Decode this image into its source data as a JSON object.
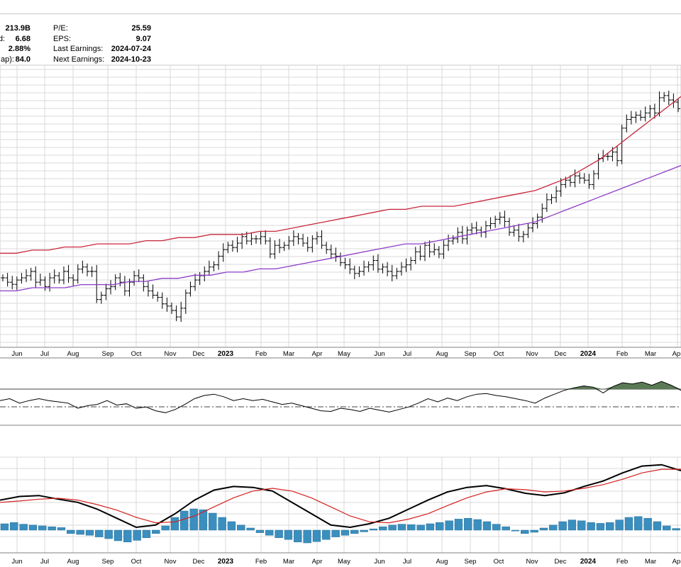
{
  "info_left": [
    {
      "label": "",
      "value": "213.9B"
    },
    {
      "label": "d:",
      "value": "6.68"
    },
    {
      "label": "",
      "value": "2.88%"
    },
    {
      "label": "ap):",
      "value": "84.0"
    }
  ],
  "info_right": [
    {
      "label": "P/E:",
      "value": "25.59"
    },
    {
      "label": "EPS:",
      "value": "9.07"
    },
    {
      "label": "Last Earnings:",
      "value": "2024-07-24"
    },
    {
      "label": "Next Earnings:",
      "value": "2024-10-23"
    }
  ],
  "colors": {
    "price_bar": "#000000",
    "ma_short": "#c8283c",
    "ma_long": "#8c3cc8",
    "oscillator": "#000000",
    "oscillator_fill": "#5a7a55",
    "macd": "#000000",
    "signal": "#d42020",
    "histogram": "#3a8fbf",
    "grid": "#d8d8d8"
  },
  "chart_data": [
    {
      "type": "line",
      "panel": "price",
      "x_axis_labels": [
        "Jun",
        "Jul",
        "Aug",
        "Sep",
        "Oct",
        "Nov",
        "Dec",
        "2023",
        "Feb",
        "Mar",
        "Apr",
        "May",
        "Jun",
        "Jul",
        "Aug",
        "Sep",
        "Oct",
        "Nov",
        "Dec",
        "2024",
        "Feb",
        "Mar",
        "Apr"
      ],
      "x_axis_positions_month_index": [
        0,
        1,
        2,
        3,
        4,
        5,
        6,
        7,
        8,
        9,
        10,
        11,
        12,
        13,
        14,
        15,
        16,
        17,
        18,
        19,
        20,
        21,
        22
      ],
      "ylim": [
        0,
        100
      ],
      "bars": {
        "ohlc_close": [
          52,
          50,
          49,
          51,
          52,
          53,
          55,
          50,
          51,
          48,
          52,
          53,
          51,
          55,
          52,
          51,
          56,
          57,
          55,
          55,
          42,
          44,
          47,
          48,
          52,
          50,
          46,
          50,
          53,
          52,
          48,
          46,
          44,
          43,
          40,
          39,
          37,
          34,
          38,
          45,
          48,
          51,
          53,
          55,
          57,
          58,
          62,
          65,
          67,
          66,
          68,
          71,
          69,
          70,
          70,
          71,
          69,
          63,
          67,
          66,
          67,
          69,
          71,
          70,
          68,
          66,
          70,
          71,
          67,
          65,
          63,
          62,
          59,
          58,
          56,
          54,
          55,
          57,
          58,
          60,
          56,
          57,
          55,
          53,
          55,
          57,
          58,
          60,
          64,
          62,
          67,
          64,
          65,
          63,
          67,
          69,
          70,
          73,
          70,
          74,
          75,
          74,
          73,
          76,
          77,
          79,
          80,
          78,
          73,
          74,
          71,
          72,
          75,
          77,
          80,
          84,
          88,
          89,
          92,
          95,
          97,
          96,
          99,
          98,
          97,
          95,
          100,
          107,
          108,
          108,
          110,
          106,
          121,
          125,
          126,
          127,
          126,
          128,
          130,
          128,
          135,
          136,
          134,
          133,
          130
        ],
        "note": "relative price levels (no price axis printed)"
      },
      "series": [
        {
          "name": "",
          "role": "ma_short",
          "values": [
            40,
            40,
            41,
            41,
            42,
            42,
            43,
            43,
            43,
            44,
            44,
            45,
            45,
            46,
            46,
            46,
            47,
            47,
            48,
            49,
            50,
            51,
            52,
            53,
            54,
            54,
            55,
            55,
            55,
            56,
            57,
            58,
            59,
            60,
            62,
            64,
            67,
            70,
            74,
            78,
            82,
            86,
            90
          ]
        },
        {
          "name": "",
          "role": "ma_long",
          "values": [
            28,
            28,
            29,
            29,
            29,
            30,
            30,
            30,
            31,
            31,
            32,
            32,
            33,
            33,
            34,
            34,
            35,
            35,
            36,
            37,
            38,
            39,
            40,
            41,
            42,
            43,
            43,
            44,
            45,
            46,
            47,
            48,
            49,
            50,
            52,
            54,
            56,
            58,
            60,
            62,
            64,
            66,
            68
          ]
        }
      ]
    },
    {
      "type": "area",
      "panel": "oscillator",
      "ylim": [
        0,
        100
      ],
      "reference_lines": [
        70,
        30
      ],
      "values": [
        52,
        55,
        48,
        52,
        55,
        52,
        50,
        48,
        40,
        44,
        46,
        52,
        45,
        47,
        40,
        42,
        36,
        33,
        38,
        46,
        55,
        60,
        62,
        58,
        52,
        55,
        52,
        54,
        50,
        46,
        48,
        44,
        40,
        36,
        35,
        40,
        38,
        35,
        40,
        37,
        34,
        38,
        42,
        48,
        55,
        50,
        56,
        52,
        58,
        62,
        63,
        60,
        58,
        55,
        52,
        48,
        56,
        62,
        68,
        72,
        75,
        73,
        64,
        74,
        80,
        78,
        81,
        76,
        82,
        76,
        68
      ]
    },
    {
      "type": "bar",
      "panel": "macd",
      "ylim": [
        -1,
        1
      ],
      "histogram": [
        0.15,
        0.18,
        0.14,
        0.12,
        0.1,
        0.08,
        0.06,
        -0.08,
        -0.1,
        -0.12,
        -0.16,
        -0.2,
        -0.25,
        -0.28,
        -0.24,
        -0.18,
        -0.08,
        0.1,
        0.3,
        0.45,
        0.5,
        0.48,
        0.4,
        0.3,
        0.2,
        0.12,
        0.05,
        -0.06,
        -0.12,
        -0.18,
        -0.22,
        -0.28,
        -0.3,
        -0.27,
        -0.22,
        -0.16,
        -0.12,
        -0.08,
        -0.04,
        0.03,
        0.08,
        0.12,
        0.14,
        0.13,
        0.12,
        0.15,
        0.18,
        0.22,
        0.26,
        0.28,
        0.25,
        0.2,
        0.14,
        0.08,
        -0.02,
        -0.08,
        -0.05,
        0.05,
        0.12,
        0.2,
        0.24,
        0.22,
        0.18,
        0.16,
        0.18,
        0.24,
        0.3,
        0.32,
        0.28,
        0.2,
        0.1,
        0.04
      ],
      "series": [
        {
          "name": "",
          "role": "macd",
          "values": [
            0.1,
            0.18,
            0.2,
            0.12,
            0.05,
            -0.1,
            -0.3,
            -0.5,
            -0.45,
            -0.2,
            0.1,
            0.32,
            0.4,
            0.38,
            0.3,
            0.05,
            -0.2,
            -0.45,
            -0.5,
            -0.42,
            -0.3,
            -0.1,
            0.1,
            0.28,
            0.38,
            0.42,
            0.35,
            0.25,
            0.2,
            0.26,
            0.4,
            0.52,
            0.7,
            0.85,
            0.88,
            0.75
          ]
        },
        {
          "name": "",
          "role": "signal",
          "values": [
            0.05,
            0.08,
            0.12,
            0.14,
            0.1,
            0.0,
            -0.12,
            -0.28,
            -0.4,
            -0.38,
            -0.25,
            -0.05,
            0.15,
            0.3,
            0.36,
            0.3,
            0.15,
            -0.05,
            -0.25,
            -0.38,
            -0.4,
            -0.32,
            -0.2,
            -0.02,
            0.15,
            0.28,
            0.35,
            0.33,
            0.28,
            0.3,
            0.36,
            0.44,
            0.56,
            0.7,
            0.78,
            0.78
          ]
        }
      ]
    }
  ]
}
